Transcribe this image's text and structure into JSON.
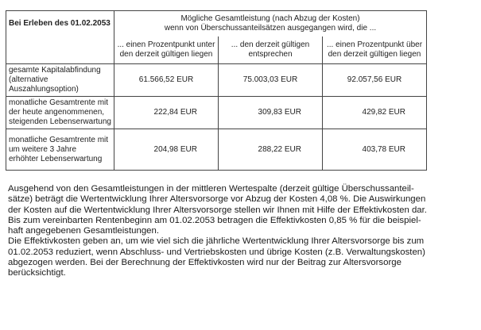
{
  "table": {
    "corner_label": "Bei Erleben des 01.02.2053",
    "group_header": [
      "Mögliche Gesamtleistung (nach Abzug der Kosten)",
      "wenn von Überschussanteilsätzen ausgegangen wird, die ..."
    ],
    "columns": [
      [
        "... einen Prozentpunkt unter",
        "den derzeit gültigen liegen"
      ],
      [
        "... den derzeit gültigen",
        "entsprechen"
      ],
      [
        "... einen Prozentpunkt über",
        "den derzeit gültigen liegen"
      ]
    ],
    "rows": [
      {
        "label": [
          "gesamte Kapitalabfindung",
          "(alternative Auszahlungsoption)"
        ],
        "values": [
          "61.566,52 EUR",
          "75.003,03 EUR",
          "92.057,56 EUR"
        ]
      },
      {
        "label": [
          "monatliche Gesamtrente mit",
          "der heute angenommenen,",
          "steigenden Lebenserwartung"
        ],
        "values": [
          "222,84 EUR",
          "309,83 EUR",
          "429,82 EUR"
        ]
      },
      {
        "label": [
          "monatliche Gesamtrente mit",
          "um weitere 3 Jahre",
          "erhöhter Lebenserwartung"
        ],
        "values": [
          "204,98 EUR",
          "288,22 EUR",
          "403,78 EUR"
        ]
      }
    ]
  },
  "paragraph": [
    "Ausgehend von den Gesamtleistungen in der mittleren Wertespalte (derzeit gültige Überschussanteil-",
    "sätze) beträgt die Wertentwicklung Ihrer Altersvorsorge vor Abzug der Kosten 4,08 %. Die Auswirkungen",
    "der Kosten auf die Wertentwicklung Ihrer Altersvorsorge stellen wir Ihnen mit Hilfe der Effektivkosten dar.",
    "Bis zum vereinbarten Rentenbeginn am 01.02.2053 betragen die Effektivkosten 0,85 % für die beispiel-",
    "haft angegebenen Gesamtleistungen.",
    "Die Effektivkosten geben an, um wie viel sich die jährliche Wertentwicklung Ihrer Altersvorsorge bis zum",
    "01.02.2053 reduziert, wenn Abschluss- und Vertriebskosten und übrige Kosten (z.B. Verwaltungskosten)",
    "abgezogen werden. Bei der Berechnung der Effektivkosten wird nur der Beitrag zur Altersvorsorge",
    "berücksichtigt."
  ]
}
